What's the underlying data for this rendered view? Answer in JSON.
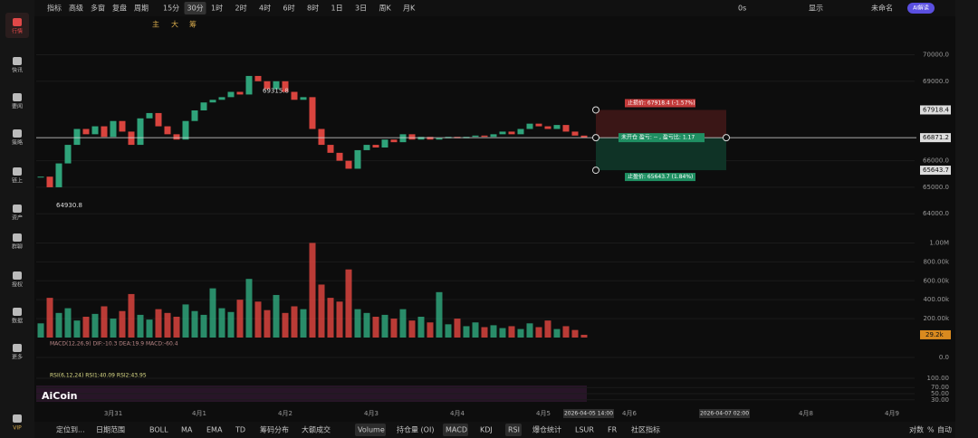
{
  "sidebar": [
    "行情",
    "快讯",
    "要闻",
    "策略",
    "链上",
    "资产",
    "群聊",
    "授权",
    "数据",
    "更多",
    "VIP"
  ],
  "toolbar": {
    "items": [
      "指标",
      "高级",
      "多窗",
      "复盘",
      "周期"
    ],
    "intervals": [
      "15分",
      "30分",
      "1时",
      "2时",
      "4时",
      "6时",
      "8时",
      "1日",
      "3日",
      "周K",
      "月K"
    ],
    "right": [
      "0s",
      "显示",
      "未命名"
    ],
    "ai_button": "AI解读",
    "draw_tools": [
      "主",
      "大",
      "筹"
    ]
  },
  "bottom_bar": {
    "left": [
      "定位到...",
      "日期范围"
    ],
    "indicators": [
      "BOLL",
      "MA",
      "EMA",
      "TD",
      "筹码分布",
      "大额成交",
      "Volume",
      "持仓量 (OI)",
      "MACD",
      "KDJ",
      "RSI",
      "爆仓统计",
      "LSUR",
      "FR",
      "社区指标"
    ],
    "right": [
      "对数",
      "%",
      "自动"
    ]
  },
  "chart_data": {
    "type": "candlestick",
    "closes": [
      65400,
      65000,
      65900,
      66600,
      67200,
      67000,
      67300,
      66900,
      67500,
      67100,
      66600,
      67600,
      67800,
      67300,
      67000,
      66800,
      67500,
      67900,
      68200,
      68300,
      68400,
      68600,
      68500,
      69200,
      69000,
      68700,
      69000,
      68600,
      68300,
      68400,
      67200,
      66600,
      66300,
      66000,
      65700,
      66400,
      66600,
      66500,
      66800,
      66700,
      67000,
      66800,
      66900,
      66800,
      66850,
      66900,
      66850,
      66900,
      66950,
      66900,
      67000,
      67100,
      67000,
      67200,
      67400,
      67300,
      67200,
      67350,
      67100,
      66950,
      66871.2
    ],
    "volumes": [
      150000,
      420000,
      260000,
      310000,
      180000,
      220000,
      250000,
      330000,
      200000,
      280000,
      460000,
      240000,
      190000,
      300000,
      260000,
      220000,
      350000,
      280000,
      240000,
      520000,
      310000,
      270000,
      400000,
      620000,
      380000,
      290000,
      450000,
      260000,
      330000,
      300000,
      1000000,
      560000,
      420000,
      380000,
      720000,
      300000,
      260000,
      220000,
      240000,
      200000,
      300000,
      180000,
      220000,
      160000,
      480000,
      140000,
      200000,
      120000,
      160000,
      110000,
      130000,
      100000,
      120000,
      90000,
      150000,
      110000,
      180000,
      90000,
      120000,
      80000,
      29200
    ],
    "ylim": [
      63700,
      70700
    ],
    "yticks": [
      {
        "value": 70000,
        "label": "70000.0"
      },
      {
        "value": 69000,
        "label": "69000.0"
      },
      {
        "value": 66000,
        "label": "66000.0"
      },
      {
        "value": 65000,
        "label": "65000.0"
      },
      {
        "value": 64000,
        "label": "64000.0"
      }
    ],
    "high": 69315.8,
    "low": 64930.8,
    "last_price": 66871.2,
    "stop_loss": {
      "price": 67918.4,
      "label": "止损价: 67918.4 (-1.57%)"
    },
    "take_profit": {
      "price": 65643.7,
      "label": "止盈价: 65643.7 (1.84%)"
    },
    "position_label": "未开仓 盈亏: -- , 盈亏比: 1.17",
    "volume_ylim": [
      0,
      1100000
    ],
    "volume_yticks": [
      {
        "value": 1000000,
        "label": "1.00M"
      },
      {
        "value": 800000,
        "label": "800.00k"
      },
      {
        "value": 600000,
        "label": "600.00k"
      },
      {
        "value": 400000,
        "label": "400.00k"
      },
      {
        "value": 200000,
        "label": "200.00k"
      }
    ],
    "volume_last": {
      "value": 29200,
      "label": "29.2k"
    },
    "macd_label": "MACD(12,26,9) DIF:-10.3 DEA:19.9 MACD:-60.4",
    "macd_ylim": [
      -100,
      100
    ],
    "macd_yticks": [
      {
        "value": 0,
        "label": "0.0"
      }
    ],
    "rsi_label": "RSI(6,12,24) RSI1:40.09 RSI2:43.95",
    "rsi_ylim": [
      0,
      100
    ],
    "rsi_yticks": [
      {
        "value": 100,
        "label": "100.00"
      },
      {
        "value": 70,
        "label": "70.00"
      },
      {
        "value": 50,
        "label": "50.00"
      },
      {
        "value": 30,
        "label": "30.00"
      }
    ],
    "xlabels": [
      "3月31",
      "4月1",
      "4月2",
      "4月3",
      "4月4",
      "4月5",
      "4月6",
      "4月8",
      "4月9"
    ],
    "crosshair_labels": [
      "2026-04-05 14:00",
      "2026-04-07 02:00"
    ],
    "watermark": "AiCoin"
  }
}
